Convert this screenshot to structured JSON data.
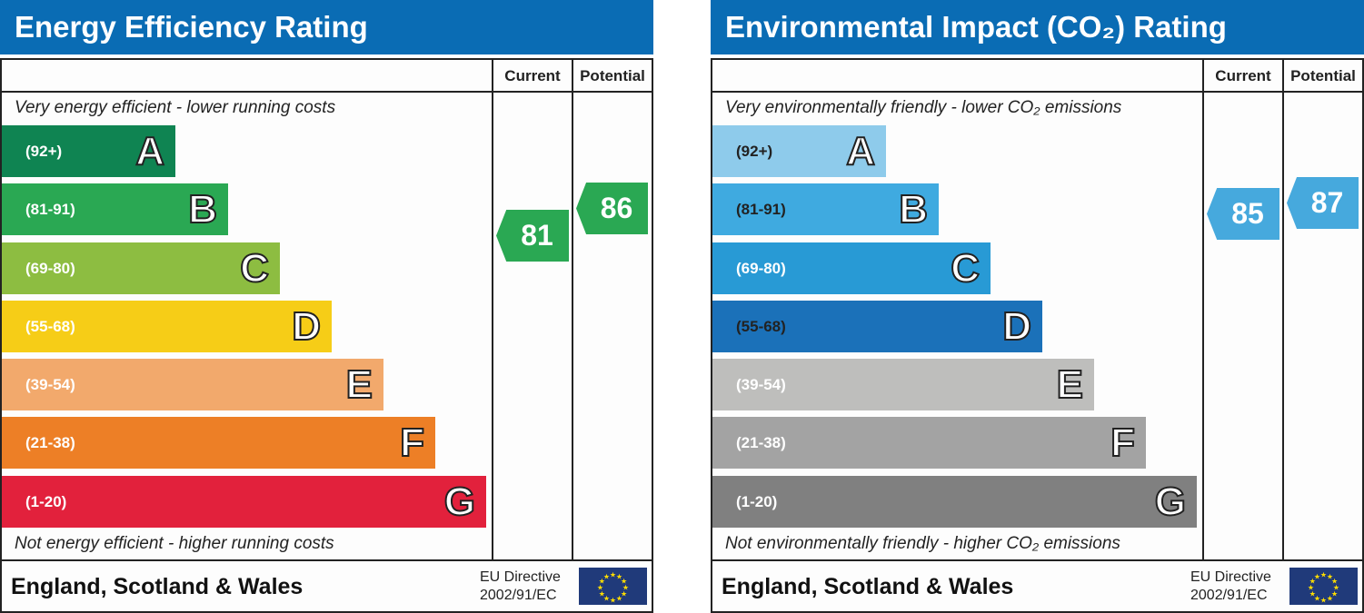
{
  "chart_data": [
    {
      "type": "bar",
      "title": "Energy Efficiency Rating",
      "column_headers": [
        "Current",
        "Potential"
      ],
      "top_note": "Very energy efficient - lower running costs",
      "bottom_note": "Not energy efficient - higher running costs",
      "bands": [
        {
          "letter": "A",
          "range": "(92+)",
          "color": "#0f8452"
        },
        {
          "letter": "B",
          "range": "(81-91)",
          "color": "#2aa853"
        },
        {
          "letter": "C",
          "range": "(69-80)",
          "color": "#8dbd41"
        },
        {
          "letter": "D",
          "range": "(55-68)",
          "color": "#f6cd17"
        },
        {
          "letter": "E",
          "range": "(39-54)",
          "color": "#f2a96c"
        },
        {
          "letter": "F",
          "range": "(21-38)",
          "color": "#ed7f26"
        },
        {
          "letter": "G",
          "range": "(1-20)",
          "color": "#e2213c"
        }
      ],
      "current": 81,
      "potential": 86,
      "current_color": "#2aa853",
      "potential_color": "#2aa853",
      "footer": "England, Scotland & Wales",
      "directive": [
        "EU Directive",
        "2002/91/EC"
      ]
    },
    {
      "type": "bar",
      "title": "Environmental Impact (CO₂) Rating",
      "column_headers": [
        "Current",
        "Potential"
      ],
      "top_note": "Very environmentally friendly - lower CO₂ emissions",
      "bottom_note": "Not environmentally friendly - higher CO₂ emissions",
      "bands": [
        {
          "letter": "A",
          "range": "(92+)",
          "color": "#8ecbeb"
        },
        {
          "letter": "B",
          "range": "(81-91)",
          "color": "#3faae0"
        },
        {
          "letter": "C",
          "range": "(69-80)",
          "color": "#289ad5"
        },
        {
          "letter": "D",
          "range": "(55-68)",
          "color": "#1b71b9"
        },
        {
          "letter": "E",
          "range": "(39-54)",
          "color": "#bebebc"
        },
        {
          "letter": "F",
          "range": "(21-38)",
          "color": "#a3a3a3"
        },
        {
          "letter": "G",
          "range": "(1-20)",
          "color": "#808080"
        }
      ],
      "current": 85,
      "potential": 87,
      "current_color": "#46a9dd",
      "potential_color": "#46a9dd",
      "footer": "England, Scotland & Wales",
      "directive": [
        "EU Directive",
        "2002/91/EC"
      ]
    }
  ]
}
